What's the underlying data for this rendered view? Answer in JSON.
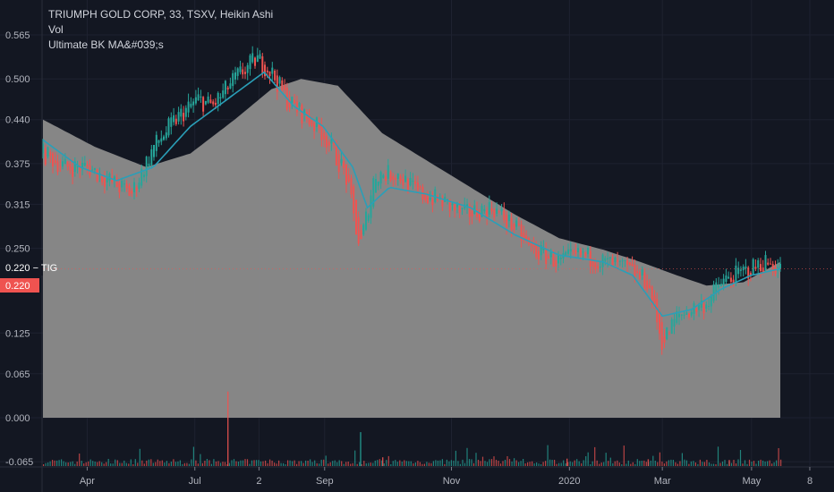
{
  "legend": {
    "title": "TRIUMPH GOLD CORP, 33, TSXV, Heikin Ashi",
    "line2": "Vol",
    "line3": "Ultimate BK MA&#039;s"
  },
  "badges": {
    "symbol": "0.220 − TIG",
    "price": "0.220"
  },
  "colors": {
    "background": "#131722",
    "up": "#26a69a",
    "down": "#ef5350",
    "ma_fill": "#8c8c8c",
    "ma_line": "#2a9fb8",
    "badge_dark": "#131722",
    "badge_red": "#ef5350"
  },
  "chart_data": {
    "type": "line",
    "style": "heikin-ashi candlesticks with volume and moving-average overlay",
    "ylim": [
      -0.075,
      0.6
    ],
    "yticks": [
      {
        "value": 0.565,
        "label": "0.565"
      },
      {
        "value": 0.5,
        "label": "0.500"
      },
      {
        "value": 0.44,
        "label": "0.440"
      },
      {
        "value": 0.375,
        "label": "0.375"
      },
      {
        "value": 0.315,
        "label": "0.315"
      },
      {
        "value": 0.25,
        "label": "0.250"
      },
      {
        "value": 0.125,
        "label": "0.125"
      },
      {
        "value": 0.065,
        "label": "0.065"
      },
      {
        "value": 0.0,
        "label": "0.000"
      },
      {
        "value": -0.065,
        "label": "-0.065"
      }
    ],
    "xticks": [
      {
        "t": 0.06,
        "label": "Apr"
      },
      {
        "t": 0.206,
        "label": "Jul"
      },
      {
        "t": 0.293,
        "label": "2"
      },
      {
        "t": 0.382,
        "label": "Sep"
      },
      {
        "t": 0.554,
        "label": "Nov"
      },
      {
        "t": 0.714,
        "label": "2020"
      },
      {
        "t": 0.84,
        "label": "Mar"
      },
      {
        "t": 0.961,
        "label": "May"
      },
      {
        "t": 1.04,
        "label": "8"
      }
    ],
    "last_price": 0.22,
    "price_path": [
      [
        0.0,
        0.39
      ],
      [
        0.03,
        0.37
      ],
      [
        0.06,
        0.37
      ],
      [
        0.09,
        0.35
      ],
      [
        0.12,
        0.33
      ],
      [
        0.15,
        0.4
      ],
      [
        0.18,
        0.44
      ],
      [
        0.21,
        0.47
      ],
      [
        0.23,
        0.46
      ],
      [
        0.26,
        0.5
      ],
      [
        0.29,
        0.53
      ],
      [
        0.31,
        0.51
      ],
      [
        0.33,
        0.47
      ],
      [
        0.35,
        0.45
      ],
      [
        0.38,
        0.42
      ],
      [
        0.41,
        0.36
      ],
      [
        0.43,
        0.25
      ],
      [
        0.45,
        0.36
      ],
      [
        0.48,
        0.36
      ],
      [
        0.51,
        0.33
      ],
      [
        0.54,
        0.32
      ],
      [
        0.57,
        0.3
      ],
      [
        0.61,
        0.31
      ],
      [
        0.64,
        0.28
      ],
      [
        0.66,
        0.25
      ],
      [
        0.7,
        0.23
      ],
      [
        0.73,
        0.24
      ],
      [
        0.76,
        0.23
      ],
      [
        0.79,
        0.22
      ],
      [
        0.82,
        0.2
      ],
      [
        0.84,
        0.11
      ],
      [
        0.86,
        0.15
      ],
      [
        0.88,
        0.16
      ],
      [
        0.9,
        0.17
      ],
      [
        0.92,
        0.2
      ],
      [
        0.94,
        0.21
      ],
      [
        0.96,
        0.22
      ],
      [
        0.98,
        0.23
      ],
      [
        1.0,
        0.22
      ]
    ],
    "ma_short": [
      [
        0.0,
        0.41
      ],
      [
        0.05,
        0.37
      ],
      [
        0.1,
        0.35
      ],
      [
        0.15,
        0.37
      ],
      [
        0.2,
        0.43
      ],
      [
        0.25,
        0.47
      ],
      [
        0.3,
        0.51
      ],
      [
        0.34,
        0.46
      ],
      [
        0.38,
        0.43
      ],
      [
        0.42,
        0.37
      ],
      [
        0.44,
        0.31
      ],
      [
        0.47,
        0.34
      ],
      [
        0.52,
        0.33
      ],
      [
        0.58,
        0.31
      ],
      [
        0.64,
        0.27
      ],
      [
        0.7,
        0.24
      ],
      [
        0.76,
        0.23
      ],
      [
        0.8,
        0.21
      ],
      [
        0.84,
        0.15
      ],
      [
        0.88,
        0.16
      ],
      [
        0.92,
        0.19
      ],
      [
        0.96,
        0.21
      ],
      [
        1.0,
        0.22
      ]
    ],
    "ma_area_top": [
      [
        0.0,
        0.44
      ],
      [
        0.07,
        0.4
      ],
      [
        0.14,
        0.37
      ],
      [
        0.2,
        0.39
      ],
      [
        0.26,
        0.44
      ],
      [
        0.31,
        0.485
      ],
      [
        0.35,
        0.5
      ],
      [
        0.4,
        0.49
      ],
      [
        0.46,
        0.42
      ],
      [
        0.52,
        0.38
      ],
      [
        0.58,
        0.34
      ],
      [
        0.64,
        0.3
      ],
      [
        0.7,
        0.265
      ],
      [
        0.76,
        0.248
      ],
      [
        0.81,
        0.23
      ],
      [
        0.86,
        0.21
      ],
      [
        0.9,
        0.195
      ],
      [
        0.95,
        0.2
      ],
      [
        1.0,
        0.23
      ]
    ],
    "volume_spikes": [
      {
        "t": 0.25,
        "v": 0.11
      },
      {
        "t": 0.43,
        "v": 0.05
      },
      {
        "t": 0.46,
        "v": 0.013
      },
      {
        "t": 0.71,
        "v": 0.011
      },
      {
        "t": 0.82,
        "v": 0.01
      },
      {
        "t": 0.93,
        "v": 0.009
      }
    ]
  }
}
